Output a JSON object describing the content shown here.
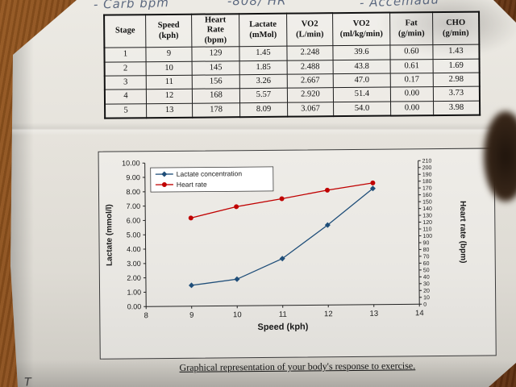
{
  "handwriting": {
    "left": "- Carb bpm",
    "center": "-808/ HR",
    "right": "- Accemadu"
  },
  "table": {
    "headers": [
      {
        "lines": [
          "Stage"
        ]
      },
      {
        "lines": [
          "Speed",
          "(kph)"
        ]
      },
      {
        "lines": [
          "Heart",
          "Rate",
          "(bpm)"
        ]
      },
      {
        "lines": [
          "Lactate",
          "(mMol)"
        ]
      },
      {
        "lines": [
          "VO2",
          "(L/min)"
        ]
      },
      {
        "lines": [
          "VO2",
          "(ml/kg/min)"
        ]
      },
      {
        "lines": [
          "Fat",
          "(g/min)"
        ]
      },
      {
        "lines": [
          "CHO",
          "(g/min)"
        ]
      }
    ],
    "rows": [
      [
        "1",
        "9",
        "129",
        "1.45",
        "2.248",
        "39.6",
        "0.60",
        "1.43"
      ],
      [
        "2",
        "10",
        "145",
        "1.85",
        "2.488",
        "43.8",
        "0.61",
        "1.69"
      ],
      [
        "3",
        "11",
        "156",
        "3.26",
        "2.667",
        "47.0",
        "0.17",
        "2.98"
      ],
      [
        "4",
        "12",
        "168",
        "5.57",
        "2.920",
        "51.4",
        "0.00",
        "3.73"
      ],
      [
        "5",
        "13",
        "178",
        "8.09",
        "3.067",
        "54.0",
        "0.00",
        "3.98"
      ]
    ]
  },
  "chart_data": {
    "type": "line",
    "title": "",
    "xlabel": "Speed (kph)",
    "ylabel_left": "Lactate (mmol/l)",
    "ylabel_right": "Heart rate (bpm)",
    "x_range": [
      8,
      14
    ],
    "x_ticks": [
      8,
      9,
      10,
      11,
      12,
      13,
      14
    ],
    "left_range": [
      0,
      10
    ],
    "left_tick_step": 1,
    "right_range": [
      0,
      210
    ],
    "right_tick_step": 10,
    "grid": false,
    "legend_position": "top-left",
    "series": [
      {
        "name": "Lactate concentration",
        "axis": "left",
        "color": "#1F4E79",
        "marker": "diamond",
        "x": [
          9,
          10,
          11,
          12,
          13
        ],
        "values": [
          1.45,
          1.85,
          3.26,
          5.57,
          8.09
        ]
      },
      {
        "name": "Heart rate",
        "axis": "right",
        "color": "#C00000",
        "marker": "circle",
        "x": [
          9,
          10,
          11,
          12,
          13
        ],
        "values": [
          129,
          145,
          156,
          168,
          178
        ]
      }
    ]
  },
  "caption": "Graphical representation of your body's response to exercise.",
  "bottom_note": "T"
}
